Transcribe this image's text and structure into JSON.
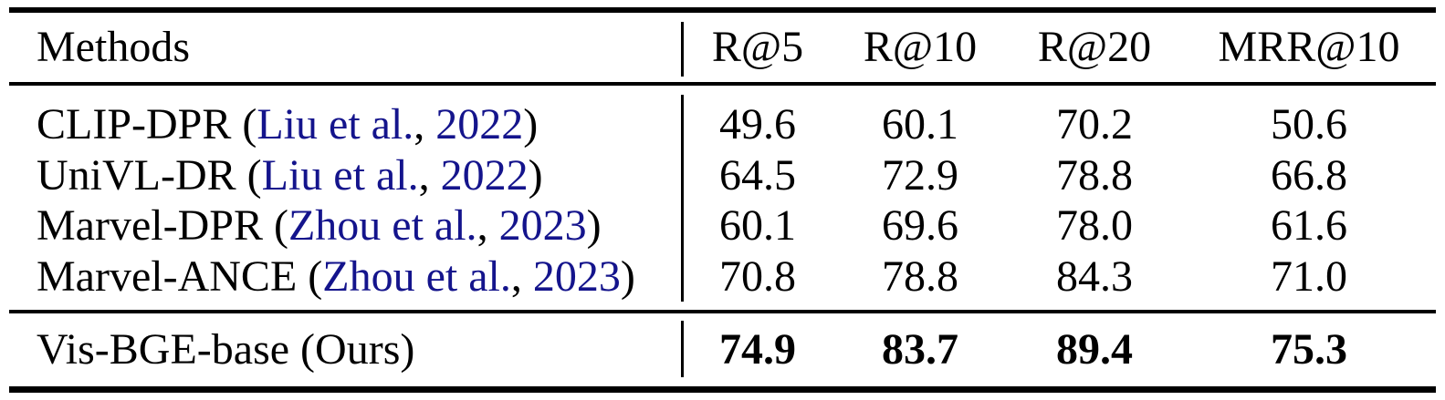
{
  "table": {
    "header": {
      "methods_label": "Methods",
      "metrics": [
        "R@5",
        "R@10",
        "R@20",
        "MRR@10"
      ]
    },
    "rows": [
      {
        "name": "CLIP-DPR",
        "cite_open": " (",
        "authors": "Liu et al.",
        "sep": ", ",
        "year": "2022",
        "cite_close": ")",
        "values": [
          "49.6",
          "60.1",
          "70.2",
          "50.6"
        ]
      },
      {
        "name": "UniVL-DR",
        "cite_open": " (",
        "authors": "Liu et al.",
        "sep": ", ",
        "year": "2022",
        "cite_close": ")",
        "values": [
          "64.5",
          "72.9",
          "78.8",
          "66.8"
        ]
      },
      {
        "name": "Marvel-DPR",
        "cite_open": " (",
        "authors": "Zhou et al.",
        "sep": ", ",
        "year": "2023",
        "cite_close": ")",
        "values": [
          "60.1",
          "69.6",
          "78.0",
          "61.6"
        ]
      },
      {
        "name": "Marvel-ANCE",
        "cite_open": " (",
        "authors": "Zhou et al.",
        "sep": ", ",
        "year": "2023",
        "cite_close": ")",
        "values": [
          "70.8",
          "78.8",
          "84.3",
          "71.0"
        ]
      }
    ],
    "footer": {
      "name": "Vis-BGE-base (Ours)",
      "values": [
        "74.9",
        "83.7",
        "89.4",
        "75.3"
      ]
    }
  },
  "colors": {
    "citation_link": "#14148C",
    "rule": "#000000",
    "text": "#000000",
    "background": "#FFFFFF"
  }
}
